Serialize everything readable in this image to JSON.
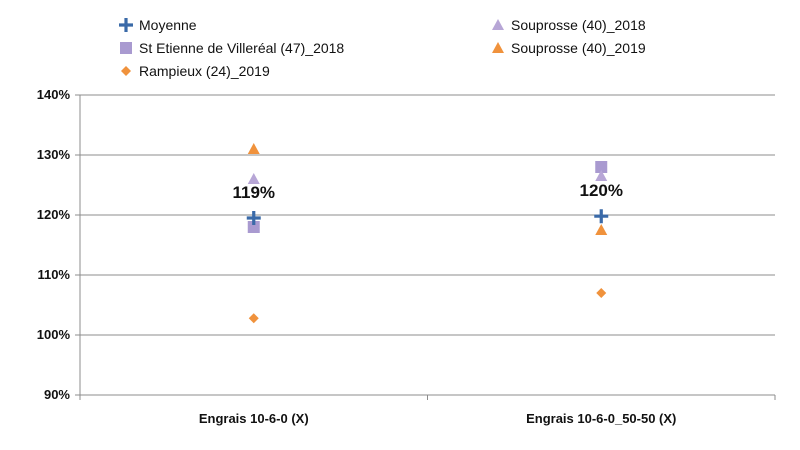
{
  "chart_data": {
    "type": "scatter",
    "title": "",
    "xlabel": "",
    "ylabel": "",
    "categories": [
      "Engrais 10-6-0 (X)",
      "Engrais 10-6-0_50-50 (X)"
    ],
    "ylim": [
      90,
      140
    ],
    "yticks": [
      90,
      100,
      110,
      120,
      130,
      140
    ],
    "ytick_labels": [
      "90%",
      "100%",
      "110%",
      "120%",
      "130%",
      "140%"
    ],
    "grid": "horizontal",
    "legend_position": "top",
    "series": [
      {
        "name": "Moyenne",
        "marker": "plus",
        "color": "#3a6aa8",
        "values": [
          119.5,
          119.8
        ],
        "labels": [
          "119%",
          "120%"
        ]
      },
      {
        "name": "St Etienne de Villeréal (47)_2018",
        "marker": "square",
        "color": "#a99ad0",
        "values": [
          118.0,
          128.0
        ]
      },
      {
        "name": "Rampieux (24)_2019",
        "marker": "diamond",
        "color": "#f0923c",
        "values": [
          102.8,
          107.0
        ]
      },
      {
        "name": "Souprosse (40)_2018",
        "marker": "triangle",
        "color": "#b7a6d6",
        "values": [
          126.0,
          126.5
        ]
      },
      {
        "name": "Souprosse (40)_2019",
        "marker": "triangle",
        "color": "#f0923c",
        "values": [
          131.0,
          117.5
        ]
      }
    ]
  }
}
